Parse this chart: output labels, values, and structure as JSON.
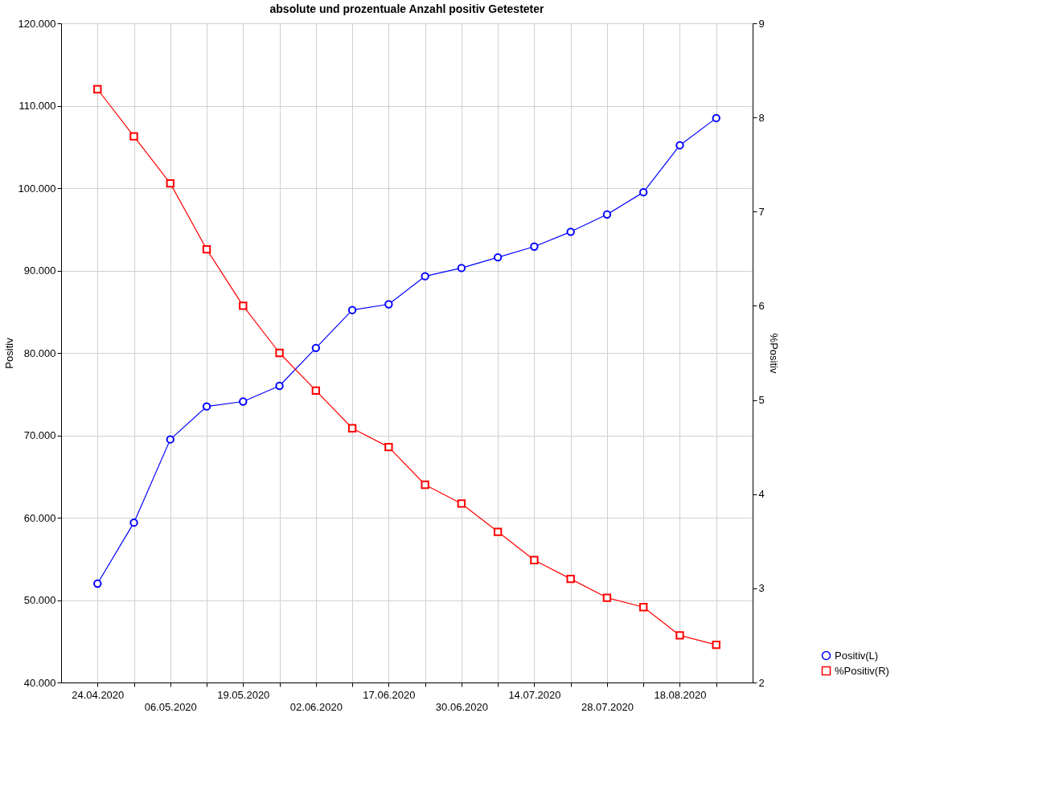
{
  "chart_data": {
    "type": "line",
    "title": "absolute und prozentuale Anzahl positiv Getesteter",
    "ylabel": "Positiv",
    "y2label": "%Positiv",
    "categories": [
      "24.04.2020",
      null,
      "06.05.2020",
      null,
      "19.05.2020",
      null,
      "02.06.2020",
      null,
      "17.06.2020",
      null,
      "30.06.2020",
      null,
      "14.07.2020",
      null,
      "28.07.2020",
      null,
      "18.08.2020",
      null
    ],
    "series": [
      {
        "name": "Positiv(L)",
        "color": "#0000ff",
        "marker": "circle",
        "values": [
          52000,
          59400,
          69500,
          73500,
          74100,
          76000,
          80600,
          85200,
          85900,
          89300,
          90300,
          91600,
          92900,
          94700,
          96800,
          99500,
          105200,
          108500
        ]
      },
      {
        "name": "%Positiv(R)",
        "color": "#ff0000",
        "marker": "square",
        "axis": "y2",
        "values": [
          8.3,
          7.8,
          7.3,
          6.6,
          6.0,
          5.5,
          5.1,
          4.7,
          4.5,
          4.1,
          3.9,
          3.6,
          3.3,
          3.1,
          2.9,
          2.8,
          2.5,
          2.4
        ]
      }
    ],
    "ylim": [
      40000,
      120000
    ],
    "yticks": [
      {
        "value": 40000,
        "label": "40.000"
      },
      {
        "value": 50000,
        "label": "50.000"
      },
      {
        "value": 60000,
        "label": "60.000"
      },
      {
        "value": 70000,
        "label": "70.000"
      },
      {
        "value": 80000,
        "label": "80.000"
      },
      {
        "value": 90000,
        "label": "90.000"
      },
      {
        "value": 100000,
        "label": "100.000"
      },
      {
        "value": 110000,
        "label": "110.000"
      },
      {
        "value": 120000,
        "label": "120.000"
      }
    ],
    "y2lim": [
      2,
      9
    ],
    "y2ticks": [
      2,
      3,
      4,
      5,
      6,
      7,
      8,
      9
    ],
    "grid": true,
    "legend": "bottom right",
    "line_style": "solid"
  }
}
